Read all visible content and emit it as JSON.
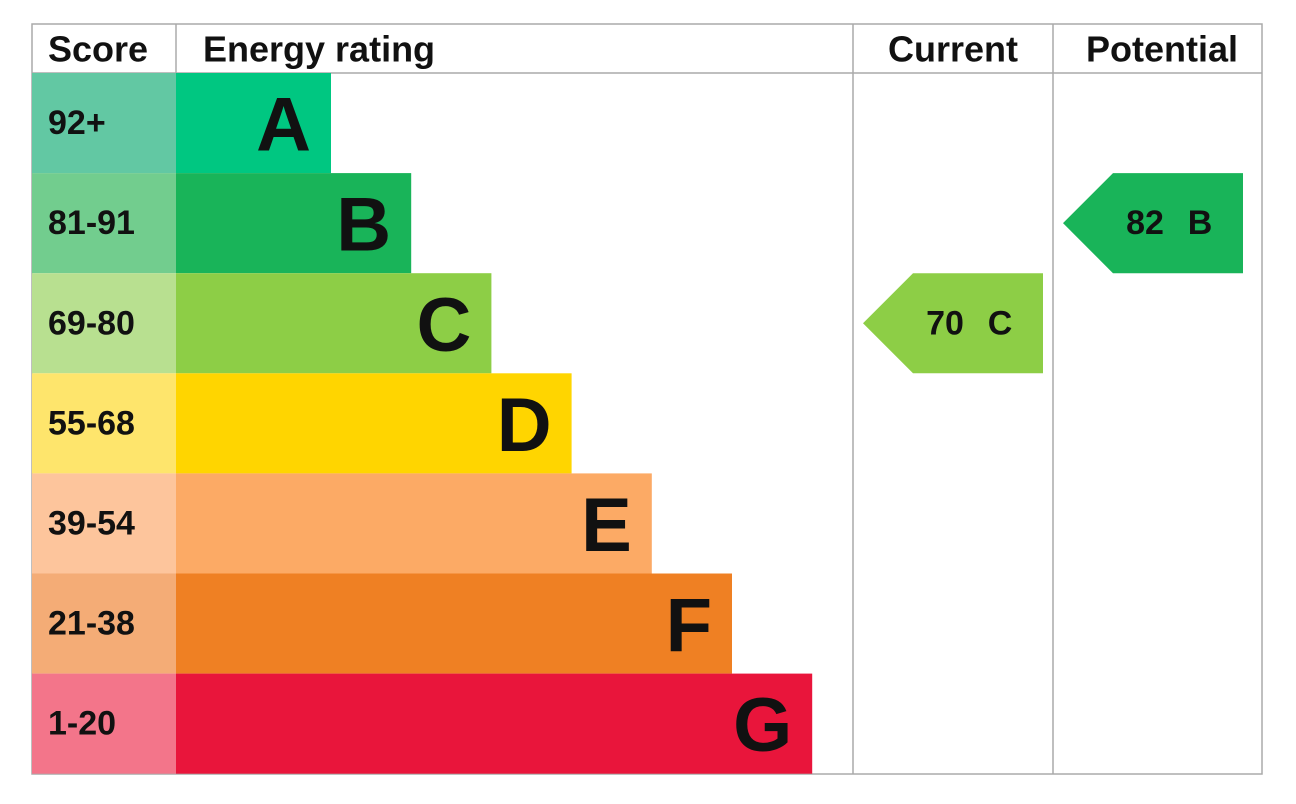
{
  "header": {
    "score": "Score",
    "rating": "Energy rating",
    "current": "Current",
    "potential": "Potential"
  },
  "bands": [
    {
      "score": "92+",
      "letter": "A",
      "color": "#00c781",
      "score_color": "#62c8a3"
    },
    {
      "score": "81-91",
      "letter": "B",
      "color": "#19b459",
      "score_color": "#72cd8e"
    },
    {
      "score": "69-80",
      "letter": "C",
      "color": "#8dce46",
      "score_color": "#b8e090"
    },
    {
      "score": "55-68",
      "letter": "D",
      "color": "#ffd500",
      "score_color": "#fee56c"
    },
    {
      "score": "39-54",
      "letter": "E",
      "color": "#fcaa65",
      "score_color": "#fdc59c"
    },
    {
      "score": "21-38",
      "letter": "F",
      "color": "#ef8023",
      "score_color": "#f4ac76"
    },
    {
      "score": "1-20",
      "letter": "G",
      "color": "#e9153b",
      "score_color": "#f3758a"
    }
  ],
  "current": {
    "value": 70,
    "band": "C"
  },
  "potential": {
    "value": 82,
    "band": "B"
  }
}
